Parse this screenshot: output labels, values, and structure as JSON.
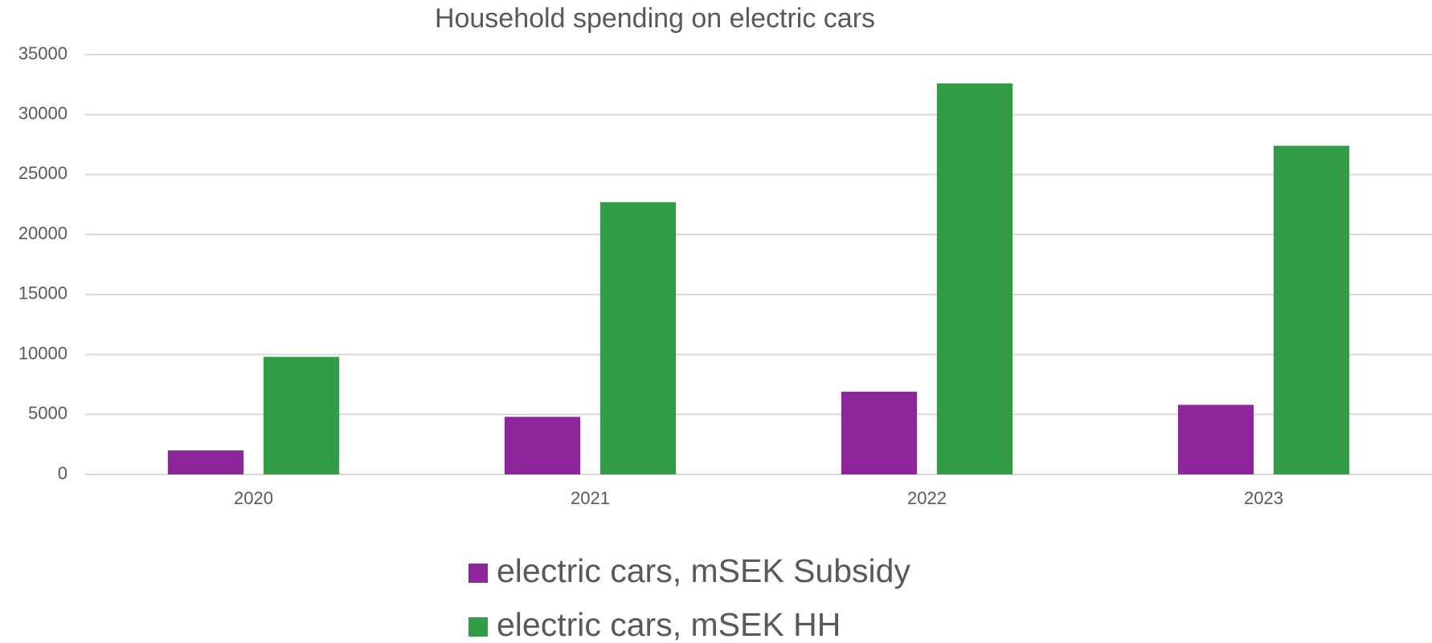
{
  "chart_data": {
    "type": "bar",
    "title": "Household spending on electric cars",
    "categories": [
      "2020",
      "2021",
      "2022",
      "2023"
    ],
    "series": [
      {
        "name": "electric cars, mSEK Subsidy",
        "color": "#8e269b",
        "values": [
          2000,
          4800,
          6900,
          5800
        ]
      },
      {
        "name": "electric cars, mSEK HH",
        "color": "#339c47",
        "values": [
          9800,
          22700,
          32600,
          27400
        ]
      }
    ],
    "ylim": [
      0,
      35000
    ],
    "yticks": [
      0,
      5000,
      10000,
      15000,
      20000,
      25000,
      30000,
      35000
    ],
    "grid": true,
    "legend": "bottom"
  }
}
